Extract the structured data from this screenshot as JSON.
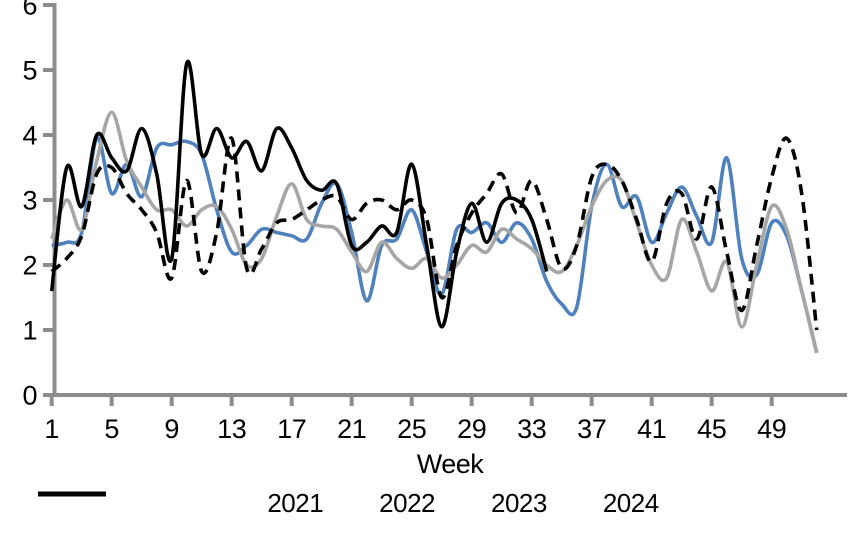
{
  "chart_data": {
    "type": "line",
    "title": "",
    "xlabel": "Week",
    "ylabel": "",
    "x": "weeks 1-52",
    "xlim": [
      1,
      53
    ],
    "ylim": [
      0,
      6
    ],
    "x_ticks": [
      1,
      5,
      9,
      13,
      17,
      21,
      25,
      29,
      33,
      37,
      41,
      45,
      49
    ],
    "y_ticks": [
      0,
      1,
      2,
      3,
      4,
      5,
      6
    ],
    "grid": false,
    "legend_position": "bottom",
    "axis_color": "#8C8C8C",
    "smoothed": true,
    "series": [
      {
        "name": "2021",
        "color": "#4F81BD",
        "style": "solid",
        "start_week": 1,
        "values": [
          2.3,
          2.35,
          2.5,
          3.95,
          3.1,
          3.55,
          3.05,
          3.8,
          3.85,
          3.9,
          3.7,
          2.85,
          2.2,
          2.3,
          2.55,
          2.5,
          2.45,
          2.4,
          2.95,
          3.25,
          2.5,
          1.45,
          2.3,
          2.4,
          2.85,
          2.2,
          1.55,
          2.55,
          2.5,
          2.65,
          2.35,
          2.65,
          2.4,
          1.75,
          1.4,
          1.35,
          2.9,
          3.55,
          2.9,
          3.05,
          2.35,
          2.8,
          3.2,
          2.75,
          2.35,
          3.65,
          2.1,
          1.85,
          2.65,
          2.45,
          1.6,
          0.65
        ]
      },
      {
        "name": "2022",
        "color": "#A6A6A6",
        "style": "solid",
        "start_week": 1,
        "values": [
          2.4,
          3.0,
          2.55,
          3.6,
          4.35,
          3.6,
          3.2,
          2.85,
          2.85,
          2.6,
          2.85,
          2.9,
          2.55,
          2.0,
          2.1,
          2.75,
          3.25,
          2.7,
          2.6,
          2.55,
          2.2,
          1.9,
          2.35,
          2.1,
          1.95,
          2.1,
          1.8,
          2.0,
          2.3,
          2.2,
          2.55,
          2.4,
          2.25,
          2.0,
          1.9,
          2.3,
          2.9,
          3.3,
          3.3,
          2.65,
          2.0,
          1.8,
          2.7,
          2.2,
          1.6,
          2.05,
          1.05,
          2.0,
          2.9,
          2.55,
          1.6,
          0.65
        ]
      },
      {
        "name": "2023",
        "color": "#000000",
        "style": "dashed",
        "start_week": 1,
        "values": [
          1.9,
          2.1,
          2.45,
          3.4,
          3.5,
          3.1,
          2.85,
          2.5,
          1.8,
          3.3,
          1.9,
          2.5,
          3.95,
          1.95,
          2.25,
          2.65,
          2.7,
          2.85,
          3.0,
          3.05,
          2.7,
          2.95,
          3.0,
          2.85,
          3.0,
          2.7,
          1.5,
          2.3,
          2.8,
          3.1,
          3.4,
          2.8,
          3.3,
          2.7,
          1.95,
          2.3,
          3.35,
          3.55,
          3.3,
          2.7,
          2.05,
          2.95,
          3.1,
          2.4,
          3.2,
          2.2,
          1.3,
          2.3,
          3.35,
          3.95,
          3.1,
          1.0
        ]
      },
      {
        "name": "2024",
        "color": "#000000",
        "style": "solid",
        "start_week": 1,
        "values": [
          1.6,
          3.5,
          2.9,
          4.0,
          3.65,
          3.45,
          4.1,
          3.4,
          2.1,
          5.1,
          3.7,
          4.1,
          3.65,
          3.9,
          3.45,
          4.1,
          3.8,
          3.3,
          3.15,
          3.25,
          2.3,
          2.35,
          2.6,
          2.5,
          3.55,
          2.3,
          1.05,
          2.2,
          2.95,
          2.35,
          2.95,
          3.0,
          2.7,
          1.9
        ]
      }
    ]
  }
}
